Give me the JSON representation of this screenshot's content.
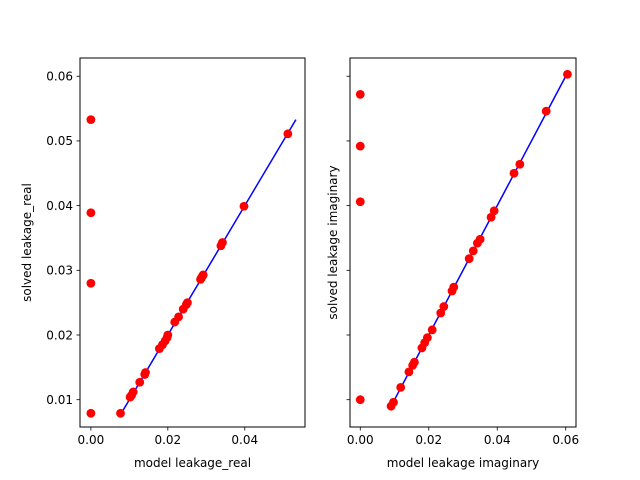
{
  "chart_data": [
    {
      "type": "scatter",
      "xlabel": "model leakage_real",
      "ylabel": "solved leakage_real",
      "xlim": [
        -0.00283,
        0.05566
      ],
      "ylim": [
        0.00578,
        0.06282
      ],
      "xticks": [
        0.0,
        0.02,
        0.04
      ],
      "xtick_labels": [
        "0.00",
        "0.02",
        "0.04"
      ],
      "yticks": [
        0.01,
        0.02,
        0.03,
        0.04,
        0.05,
        0.06
      ],
      "ytick_labels": [
        "0.01",
        "0.02",
        "0.03",
        "0.04",
        "0.05",
        "0.06"
      ],
      "grid": false,
      "series": [
        {
          "kind": "points",
          "color": "#ff0000",
          "x": [
            0.0,
            0.0,
            0.0,
            0.0,
            0.0077,
            0.0102,
            0.0106,
            0.011,
            0.0127,
            0.014,
            0.0142,
            0.0178,
            0.0186,
            0.0193,
            0.0198,
            0.02,
            0.0218,
            0.0228,
            0.024,
            0.0248,
            0.0251,
            0.0285,
            0.0287,
            0.029,
            0.0292,
            0.0338,
            0.0342,
            0.0398,
            0.0512
          ],
          "y": [
            0.0533,
            0.0389,
            0.028,
            0.0079,
            0.0079,
            0.0104,
            0.0107,
            0.0112,
            0.0127,
            0.0139,
            0.0142,
            0.0179,
            0.0185,
            0.0191,
            0.0196,
            0.02,
            0.022,
            0.0228,
            0.024,
            0.0247,
            0.025,
            0.0286,
            0.0288,
            0.0291,
            0.0293,
            0.0338,
            0.0343,
            0.0399,
            0.0511
          ]
        },
        {
          "kind": "line",
          "color": "#0000ff",
          "x": [
            0.0077,
            0.0533
          ],
          "y": [
            0.0077,
            0.0533
          ]
        }
      ]
    },
    {
      "type": "scatter",
      "xlabel": "model leakage imaginary",
      "ylabel": "solved leakage imaginary",
      "xlim": [
        -0.003,
        0.063
      ],
      "ylim": [
        0.00578,
        0.06282
      ],
      "xticks": [
        0.0,
        0.02,
        0.04,
        0.06
      ],
      "xtick_labels": [
        "0.00",
        "0.02",
        "0.04",
        "0.06"
      ],
      "yticks": [
        0.01,
        0.02,
        0.03,
        0.04,
        0.05,
        0.06
      ],
      "ytick_labels": [],
      "grid": false,
      "series": [
        {
          "kind": "points",
          "color": "#ff0000",
          "x": [
            0.0,
            0.0,
            0.0,
            0.0,
            0.009,
            0.0097,
            0.0118,
            0.0142,
            0.0153,
            0.0158,
            0.018,
            0.0188,
            0.0196,
            0.021,
            0.0235,
            0.0244,
            0.0268,
            0.0273,
            0.0318,
            0.033,
            0.0342,
            0.035,
            0.0382,
            0.0391,
            0.0449,
            0.0466,
            0.0543,
            0.0605
          ],
          "y": [
            0.0572,
            0.0492,
            0.0406,
            0.01,
            0.009,
            0.0096,
            0.0119,
            0.0143,
            0.0153,
            0.0158,
            0.018,
            0.0188,
            0.0196,
            0.0208,
            0.0234,
            0.0244,
            0.0268,
            0.0274,
            0.0318,
            0.033,
            0.0342,
            0.0348,
            0.0382,
            0.0392,
            0.045,
            0.0464,
            0.0546,
            0.0603
          ]
        },
        {
          "kind": "line",
          "color": "#0000ff",
          "x": [
            0.009,
            0.0605
          ],
          "y": [
            0.009,
            0.0605
          ]
        }
      ]
    }
  ]
}
